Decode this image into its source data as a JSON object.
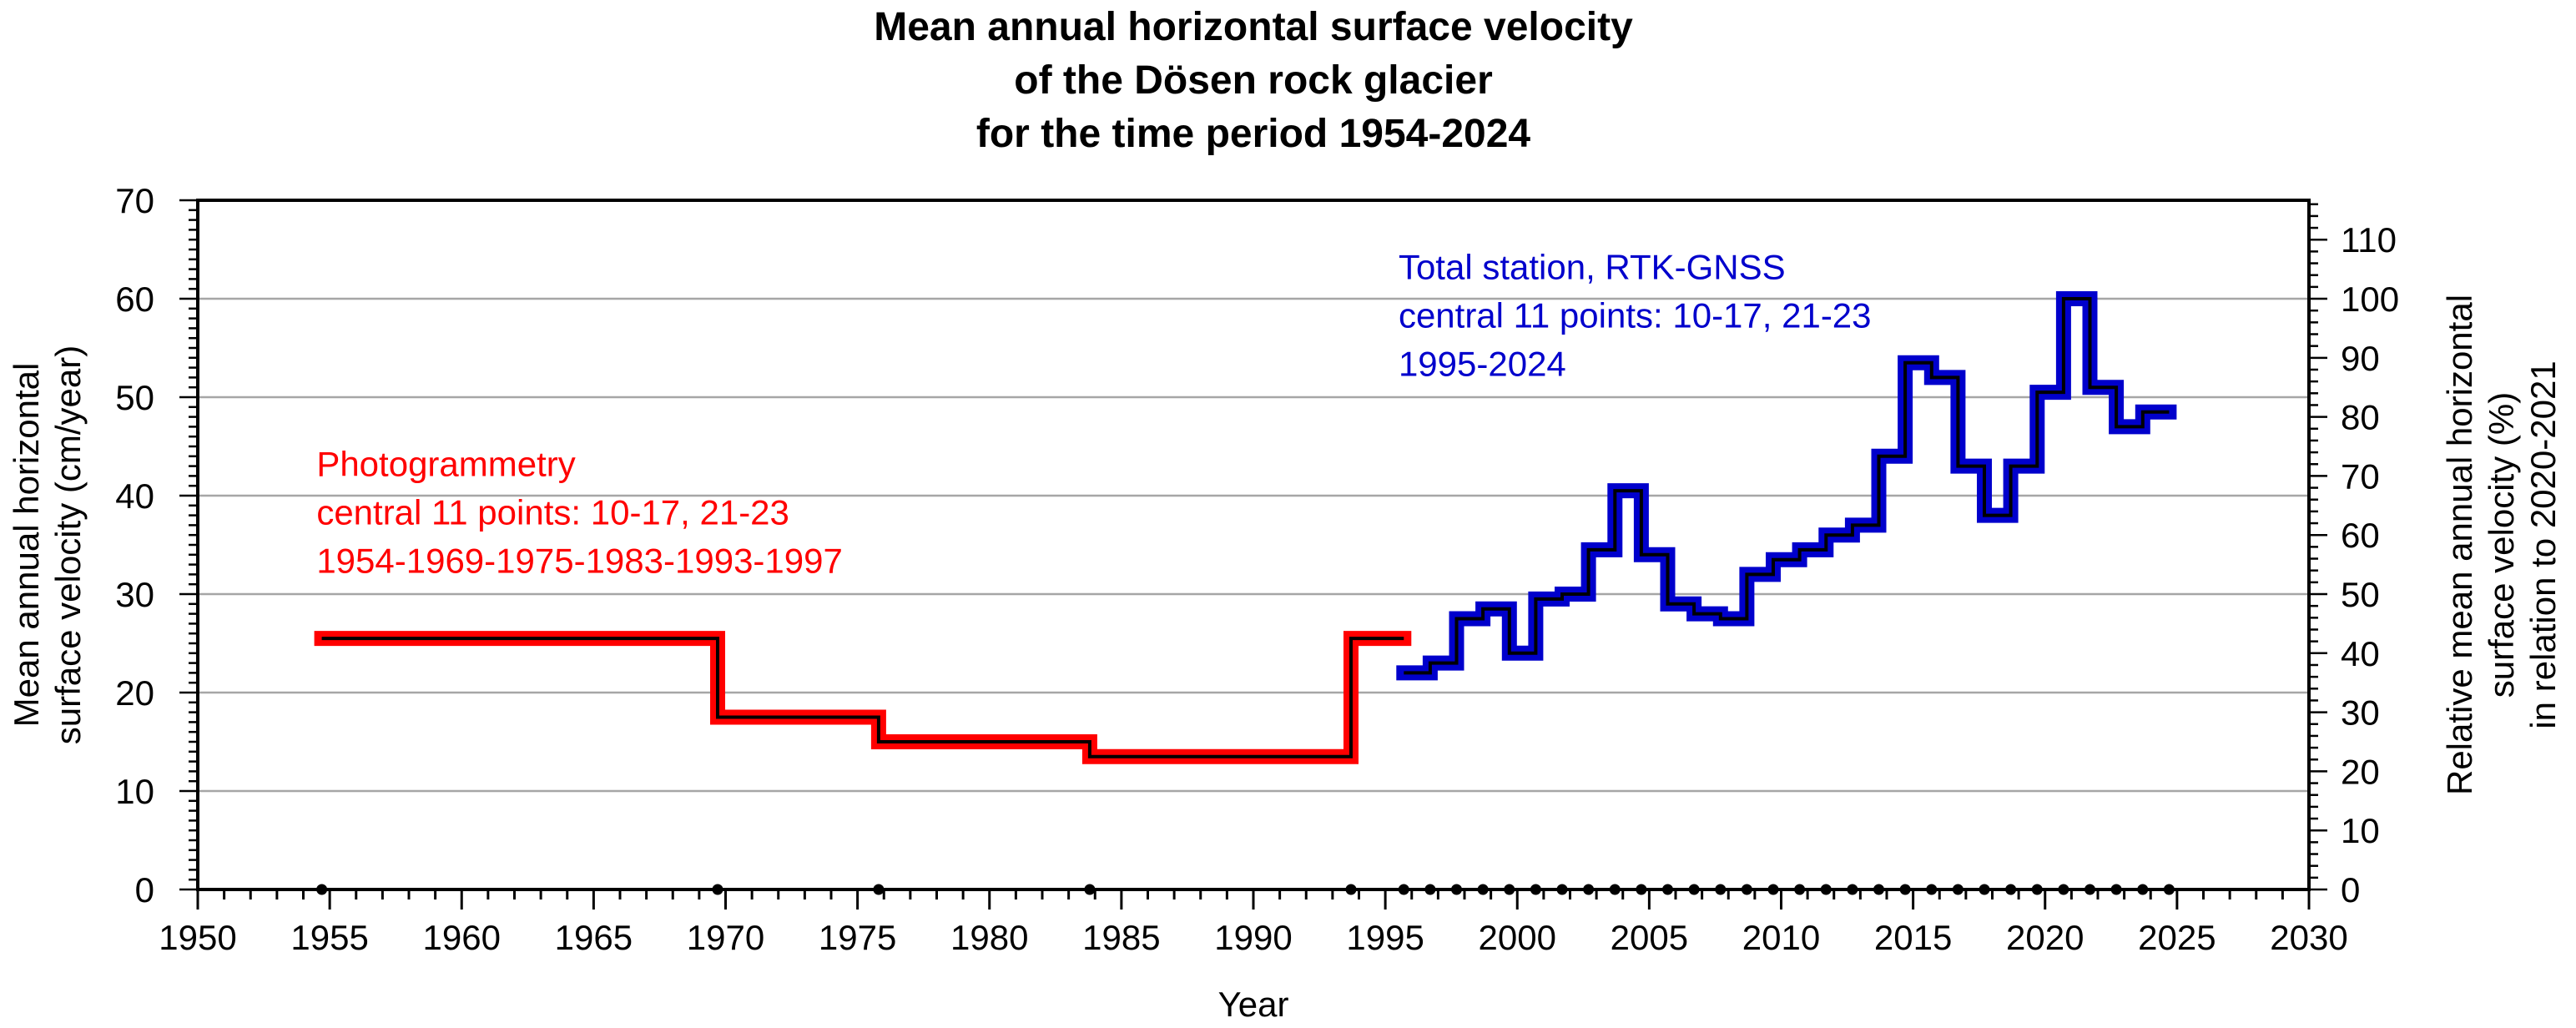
{
  "chart_data": {
    "type": "line",
    "title_lines": [
      "Mean annual horizontal surface velocity",
      "of the Dösen rock glacier",
      "for the time period 1954-2024"
    ],
    "xlabel": "Year",
    "ylabel_left": [
      "Mean annual horizontal",
      "surface velocity (cm/year)"
    ],
    "ylabel_right": [
      "Relative mean annual horizontal",
      "surface velocity (%)",
      "in relation to 2020-2021"
    ],
    "xlim": [
      1950,
      2030
    ],
    "ylim_left": [
      0,
      70
    ],
    "ylim_right": [
      0,
      116.67
    ],
    "x_ticks": [
      1950,
      1955,
      1960,
      1965,
      1970,
      1975,
      1980,
      1985,
      1990,
      1995,
      2000,
      2005,
      2010,
      2015,
      2020,
      2025,
      2030
    ],
    "y_ticks_left": [
      0,
      10,
      20,
      30,
      40,
      50,
      60,
      70
    ],
    "y_ticks_right": [
      0,
      10,
      20,
      30,
      40,
      50,
      60,
      70,
      80,
      90,
      100,
      110
    ],
    "grid": "horizontal",
    "series": [
      {
        "name": "Photogrammetry",
        "color": "#ff0000",
        "style": "step",
        "points": [
          [
            1954.7,
            25.5
          ],
          [
            1969.7,
            25.5
          ],
          [
            1969.7,
            17.5
          ],
          [
            1975.8,
            17.5
          ],
          [
            1975.8,
            15.0
          ],
          [
            1983.8,
            15.0
          ],
          [
            1983.8,
            13.5
          ],
          [
            1993.7,
            13.5
          ],
          [
            1993.7,
            25.5
          ],
          [
            1995.7,
            25.5
          ]
        ],
        "sampling_dates": [
          1954.7,
          1969.7,
          1975.8,
          1983.8,
          1993.7
        ]
      },
      {
        "name": "Total station, RTK-GNSS",
        "color": "#0000cc",
        "style": "step",
        "points": [
          [
            1995.7,
            22.0
          ],
          [
            1996.7,
            22.0
          ],
          [
            1996.7,
            23.0
          ],
          [
            1997.7,
            23.0
          ],
          [
            1997.7,
            27.5
          ],
          [
            1998.7,
            27.5
          ],
          [
            1998.7,
            28.5
          ],
          [
            1999.7,
            28.5
          ],
          [
            1999.7,
            24.0
          ],
          [
            2000.7,
            24.0
          ],
          [
            2000.7,
            29.5
          ],
          [
            2001.7,
            29.5
          ],
          [
            2001.7,
            30.0
          ],
          [
            2002.7,
            30.0
          ],
          [
            2002.7,
            34.5
          ],
          [
            2003.7,
            34.5
          ],
          [
            2003.7,
            40.5
          ],
          [
            2004.7,
            40.5
          ],
          [
            2004.7,
            34.0
          ],
          [
            2005.7,
            34.0
          ],
          [
            2005.7,
            29.0
          ],
          [
            2006.7,
            29.0
          ],
          [
            2006.7,
            28.0
          ],
          [
            2007.7,
            28.0
          ],
          [
            2007.7,
            27.5
          ],
          [
            2008.7,
            27.5
          ],
          [
            2008.7,
            32.0
          ],
          [
            2009.7,
            32.0
          ],
          [
            2009.7,
            33.5
          ],
          [
            2010.7,
            33.5
          ],
          [
            2010.7,
            34.5
          ],
          [
            2011.7,
            34.5
          ],
          [
            2011.7,
            36.0
          ],
          [
            2012.7,
            36.0
          ],
          [
            2012.7,
            37.0
          ],
          [
            2013.7,
            37.0
          ],
          [
            2013.7,
            44.0
          ],
          [
            2014.7,
            44.0
          ],
          [
            2014.7,
            53.5
          ],
          [
            2015.7,
            53.5
          ],
          [
            2015.7,
            52.0
          ],
          [
            2016.7,
            52.0
          ],
          [
            2016.7,
            43.0
          ],
          [
            2017.7,
            43.0
          ],
          [
            2017.7,
            38.0
          ],
          [
            2018.7,
            38.0
          ],
          [
            2018.7,
            43.0
          ],
          [
            2019.7,
            43.0
          ],
          [
            2019.7,
            50.5
          ],
          [
            2020.7,
            50.5
          ],
          [
            2020.7,
            60.0
          ],
          [
            2021.7,
            60.0
          ],
          [
            2021.7,
            51.0
          ],
          [
            2022.7,
            51.0
          ],
          [
            2022.7,
            47.0
          ],
          [
            2023.7,
            47.0
          ],
          [
            2023.7,
            48.5
          ],
          [
            2024.7,
            48.5
          ]
        ],
        "sampling_dates": [
          1995.7,
          1996.7,
          1997.7,
          1998.7,
          1999.7,
          2000.7,
          2001.7,
          2002.7,
          2003.7,
          2004.7,
          2005.7,
          2006.7,
          2007.7,
          2008.7,
          2009.7,
          2010.7,
          2011.7,
          2012.7,
          2013.7,
          2014.7,
          2015.7,
          2016.7,
          2017.7,
          2018.7,
          2019.7,
          2020.7,
          2021.7,
          2022.7,
          2023.7,
          2024.7
        ]
      }
    ],
    "annotations": [
      {
        "series": "Photogrammetry",
        "color": "#ff0000",
        "lines": [
          "Photogrammetry",
          "central 11 points: 10-17, 21-23",
          "1954-1969-1975-1983-1993-1997"
        ],
        "anchor": [
          1954.5,
          42
        ]
      },
      {
        "series": "Total station, RTK-GNSS",
        "color": "#0000cc",
        "lines": [
          "Total station, RTK-GNSS",
          "central 11 points: 10-17, 21-23",
          "1995-2024"
        ],
        "anchor": [
          1995.5,
          62
        ]
      }
    ]
  }
}
